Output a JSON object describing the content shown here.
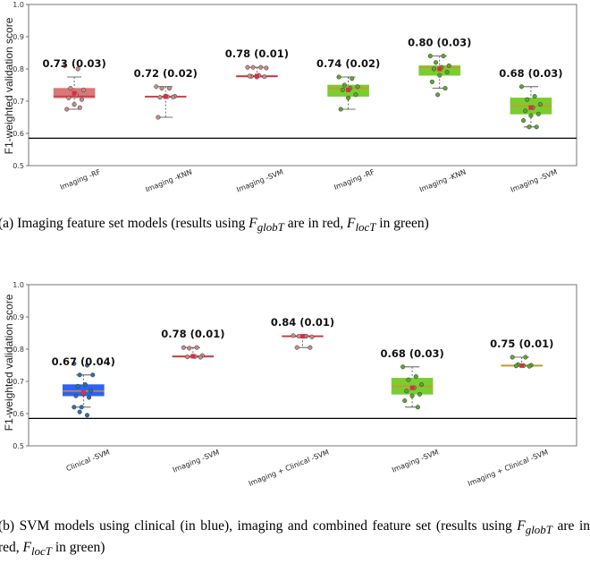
{
  "colors": {
    "red_fill": "#d9777b",
    "red_median": "#c23a3a",
    "red_point": "#c98a8a",
    "green_fill": "#7acd2f",
    "green_median": "#e08a36",
    "green_point": "#5aa830",
    "blue_fill": "#2f63f0",
    "blue_median": "#e08a36",
    "blue_point": "#2c6fb0",
    "mean_marker": "#d62f45",
    "reference_line": "#000000"
  },
  "chart_data": [
    {
      "type": "box",
      "ylabel": "F1-weighted validation score",
      "ylim": [
        0.5,
        1.0
      ],
      "yticks": [
        "0.5",
        "0.6",
        "0.7",
        "0.8",
        "0.9",
        "1.0"
      ],
      "reference_line": 0.585,
      "grid": false,
      "categories": [
        "Imaging -RF",
        "Imaging -KNN",
        "Imaging -SVM",
        "Imaging -RF",
        "Imaging -KNN",
        "Imaging -SVM"
      ],
      "annotations": [
        "0.73 (0.03)",
        "0.72 (0.02)",
        "0.78 (0.01)",
        "0.74 (0.02)",
        "0.80 (0.03)",
        "0.68 (0.03)"
      ],
      "boxes": [
        {
          "group": "red",
          "q1": 0.71,
          "median": 0.715,
          "q3": 0.74,
          "whisker_low": 0.675,
          "whisker_high": 0.775,
          "mean": 0.725,
          "points": [
            0.81,
            0.8,
            0.74,
            0.735,
            0.72,
            0.71,
            0.705,
            0.69,
            0.675,
            0.68
          ]
        },
        {
          "group": "red",
          "q1": 0.712,
          "median": 0.714,
          "q3": 0.716,
          "whisker_low": 0.65,
          "whisker_high": 0.745,
          "mean": 0.714,
          "points": [
            0.745,
            0.74,
            0.74,
            0.715,
            0.714,
            0.712,
            0.713,
            0.716,
            0.65
          ]
        },
        {
          "group": "red",
          "q1": 0.775,
          "median": 0.777,
          "q3": 0.78,
          "whisker_low": 0.775,
          "whisker_high": 0.805,
          "mean": 0.778,
          "points": [
            0.805,
            0.805,
            0.805,
            0.803,
            0.78,
            0.777,
            0.776,
            0.775,
            0.778
          ]
        },
        {
          "group": "green",
          "q1": 0.715,
          "median": 0.74,
          "q3": 0.75,
          "whisker_low": 0.675,
          "whisker_high": 0.775,
          "mean": 0.735,
          "points": [
            0.775,
            0.77,
            0.75,
            0.745,
            0.74,
            0.735,
            0.72,
            0.71,
            0.675
          ]
        },
        {
          "group": "green",
          "q1": 0.78,
          "median": 0.805,
          "q3": 0.81,
          "whisker_low": 0.74,
          "whisker_high": 0.84,
          "mean": 0.8,
          "points": [
            0.84,
            0.84,
            0.82,
            0.81,
            0.805,
            0.8,
            0.79,
            0.78,
            0.76,
            0.74,
            0.72
          ]
        },
        {
          "group": "green",
          "q1": 0.66,
          "median": 0.685,
          "q3": 0.71,
          "whisker_low": 0.62,
          "whisker_high": 0.745,
          "mean": 0.68,
          "points": [
            0.745,
            0.715,
            0.705,
            0.69,
            0.68,
            0.67,
            0.66,
            0.655,
            0.64,
            0.62,
            0.62
          ]
        }
      ]
    },
    {
      "type": "box",
      "ylabel": "F1-weighted validation score",
      "ylim": [
        0.5,
        1.0
      ],
      "yticks": [
        "0.5",
        "0.6",
        "0.7",
        "0.8",
        "0.9",
        "1.0"
      ],
      "reference_line": 0.585,
      "grid": false,
      "categories": [
        "Clinical -SVM",
        "Imaging -SVM",
        "Imaging + Clinical -SVM",
        "Imaging -SVM",
        "Imaging + Clinical -SVM"
      ],
      "annotations": [
        "0.67 (0.04)",
        "0.78 (0.01)",
        "0.84 (0.01)",
        "0.68 (0.03)",
        "0.75 (0.01)"
      ],
      "boxes": [
        {
          "group": "blue",
          "q1": 0.655,
          "median": 0.67,
          "q3": 0.69,
          "whisker_low": 0.62,
          "whisker_high": 0.72,
          "mean": 0.665,
          "points": [
            0.755,
            0.75,
            0.72,
            0.72,
            0.69,
            0.685,
            0.67,
            0.66,
            0.655,
            0.65,
            0.62,
            0.62,
            0.595,
            0.605
          ]
        },
        {
          "group": "red",
          "q1": 0.775,
          "median": 0.777,
          "q3": 0.78,
          "whisker_low": 0.775,
          "whisker_high": 0.805,
          "mean": 0.778,
          "points": [
            0.805,
            0.805,
            0.803,
            0.78,
            0.777,
            0.776,
            0.775,
            0.778
          ]
        },
        {
          "group": "red",
          "q1": 0.838,
          "median": 0.84,
          "q3": 0.842,
          "whisker_low": 0.805,
          "whisker_high": 0.842,
          "mean": 0.84,
          "points": [
            0.842,
            0.84,
            0.84,
            0.838,
            0.84,
            0.805,
            0.805
          ]
        },
        {
          "group": "green",
          "q1": 0.66,
          "median": 0.685,
          "q3": 0.71,
          "whisker_low": 0.62,
          "whisker_high": 0.745,
          "mean": 0.68,
          "points": [
            0.745,
            0.715,
            0.705,
            0.69,
            0.68,
            0.67,
            0.66,
            0.655,
            0.64,
            0.62
          ]
        },
        {
          "group": "green",
          "q1": 0.747,
          "median": 0.749,
          "q3": 0.751,
          "whisker_low": 0.747,
          "whisker_high": 0.775,
          "mean": 0.749,
          "points": [
            0.775,
            0.775,
            0.752,
            0.75,
            0.749,
            0.748,
            0.747
          ]
        }
      ]
    }
  ],
  "captions": {
    "a": "(a) Imaging feature set models (results using F_globT are in red, F_locT in green)",
    "b": "(b) SVM models using clinical (in blue), imaging and combined feature set (results using F_globT are in red, F_locT in green)"
  }
}
